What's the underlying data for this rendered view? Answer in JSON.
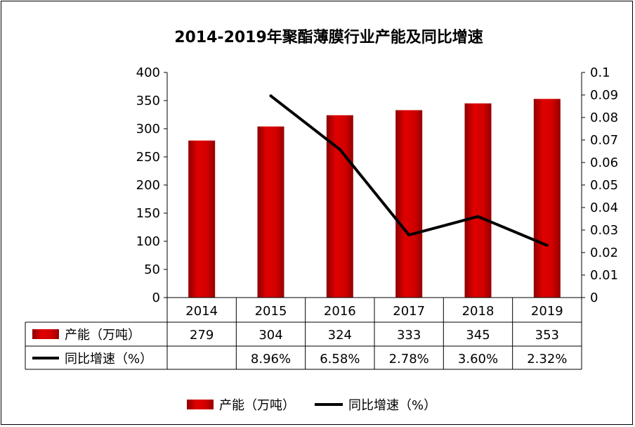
{
  "chart_data": {
    "type": "bar",
    "title": "2014-2019年聚酯薄膜行业产能及同比增速",
    "categories": [
      "2014",
      "2015",
      "2016",
      "2017",
      "2018",
      "2019"
    ],
    "series": [
      {
        "name": "产能（万吨）",
        "type": "bar",
        "axis": "left",
        "color": "#d00000",
        "values": [
          279,
          304,
          324,
          333,
          345,
          353
        ],
        "table_labels": [
          "279",
          "304",
          "324",
          "333",
          "345",
          "353"
        ]
      },
      {
        "name": "同比增速（%）",
        "type": "line",
        "axis": "right",
        "color": "#000000",
        "values": [
          null,
          0.0896,
          0.0658,
          0.0278,
          0.036,
          0.0232
        ],
        "table_labels": [
          "",
          "8.96%",
          "6.58%",
          "2.78%",
          "3.60%",
          "2.32%"
        ]
      }
    ],
    "y_left": {
      "ylim": [
        0,
        400
      ],
      "ticks": [
        "0",
        "50",
        "100",
        "150",
        "200",
        "250",
        "300",
        "350",
        "400"
      ]
    },
    "y_right": {
      "ylim": [
        0,
        0.1
      ],
      "ticks": [
        "0",
        "0.01",
        "0.02",
        "0.03",
        "0.04",
        "0.05",
        "0.06",
        "0.07",
        "0.08",
        "0.09",
        "0.1"
      ]
    },
    "grid": false,
    "legend": "bottom",
    "data_table": true
  }
}
